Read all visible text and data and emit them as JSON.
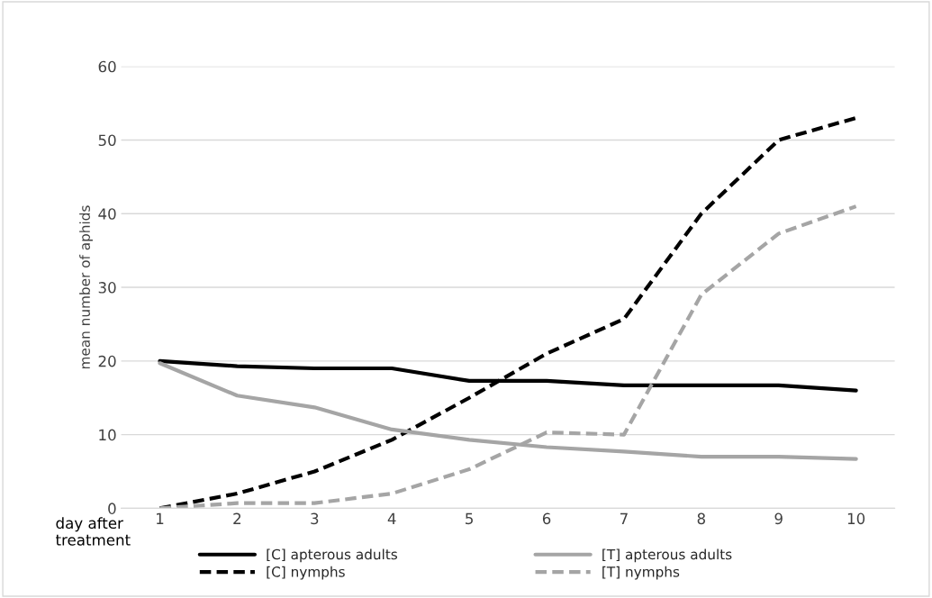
{
  "chart_data": {
    "type": "line",
    "xlabel": "day after\ntreatment",
    "ylabel": "mean number of aphids",
    "categories": [
      "1",
      "2",
      "3",
      "4",
      "5",
      "6",
      "7",
      "8",
      "9",
      "10"
    ],
    "series": [
      {
        "name": "[C] apterous adults",
        "color": "#000000",
        "line_style": "solid",
        "values": [
          20,
          19.3,
          19,
          19,
          17.3,
          17.3,
          16.7,
          16.7,
          16.7,
          16
        ]
      },
      {
        "name": "[C] nymphs",
        "color": "#000000",
        "line_style": "dashed",
        "values": [
          0,
          2,
          5,
          9.3,
          15,
          21,
          25.7,
          40,
          50,
          53
        ]
      },
      {
        "name": "[T] apterous adults",
        "color": "#a5a5a5",
        "line_style": "solid",
        "values": [
          19.7,
          15.3,
          13.7,
          10.7,
          9.3,
          8.3,
          7.7,
          7,
          7,
          6.7
        ]
      },
      {
        "name": "[T] nymphs",
        "color": "#a5a5a5",
        "line_style": "dashed",
        "values": [
          0,
          0.7,
          0.7,
          2,
          5.3,
          10.3,
          10,
          29,
          37.3,
          41
        ]
      }
    ],
    "ylim": [
      0,
      60
    ],
    "yticks": [
      0,
      10,
      20,
      30,
      40,
      50,
      60
    ],
    "grid": "y",
    "legend": "bottom",
    "marker": "none"
  }
}
